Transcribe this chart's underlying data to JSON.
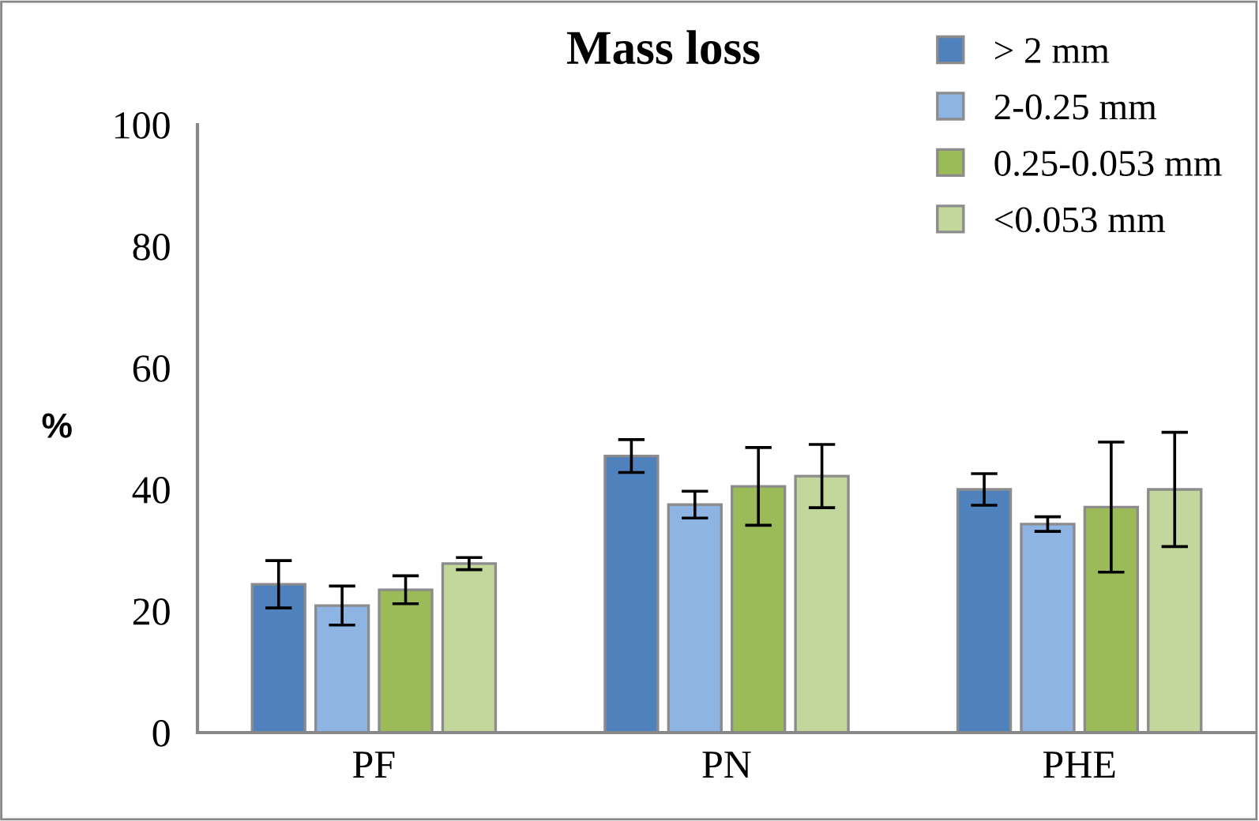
{
  "chart_data": {
    "type": "bar",
    "title": "Mass loss",
    "ylabel": "%",
    "categories": [
      "PF",
      "PN",
      "PHE"
    ],
    "series": [
      {
        "name": "> 2 mm",
        "color": "#4f81bd",
        "values": [
          24.4,
          45.5,
          40.0
        ],
        "errors": [
          3.9,
          2.7,
          2.6
        ]
      },
      {
        "name": "2-0.25 mm",
        "color": "#8eb4e3",
        "values": [
          20.9,
          37.5,
          34.3
        ],
        "errors": [
          3.2,
          2.2,
          1.2
        ]
      },
      {
        "name": "0.25-0.053 mm",
        "color": "#9bbb59",
        "values": [
          23.5,
          40.5,
          37.1
        ],
        "errors": [
          2.3,
          6.4,
          10.7
        ]
      },
      {
        "name": "<0.053 mm",
        "color": "#c3d69b",
        "values": [
          27.8,
          42.2,
          40.0
        ],
        "errors": [
          1.0,
          5.2,
          9.4
        ]
      }
    ],
    "ylim": [
      0,
      100
    ],
    "yticks": [
      0,
      20,
      40,
      60,
      80,
      100
    ],
    "grid": false,
    "legend": "top right"
  }
}
